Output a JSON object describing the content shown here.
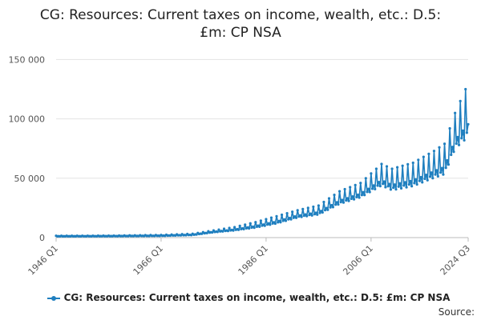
{
  "chart_data": {
    "type": "line",
    "title_line1": "CG: Resources: Current taxes on income, wealth, etc.: D.5:",
    "title_line2": "£m: CP NSA",
    "xlabel": "",
    "ylabel": "",
    "x_ticks": [
      "1946 Q1",
      "1966 Q1",
      "1986 Q1",
      "2006 Q1",
      "2024 Q3"
    ],
    "y_ticks": [
      "0",
      "50 000",
      "100 000",
      "150 000"
    ],
    "ylim": [
      0,
      155000
    ],
    "grid": true,
    "legend_position": "bottom",
    "color": "#1f7fbf",
    "frequency": "quarterly",
    "x_start": "1946 Q1",
    "x_end": "2024 Q3",
    "series": [
      {
        "name": "CG: Resources: Current taxes on income, wealth, etc.: D.5: £m: CP NSA",
        "anchors": [
          {
            "x": "1946 Q1",
            "trend": 1200,
            "amplitude": 300
          },
          {
            "x": "1956 Q1",
            "trend": 1300,
            "amplitude": 300
          },
          {
            "x": "1966 Q1",
            "trend": 1700,
            "amplitude": 500
          },
          {
            "x": "1972 Q1",
            "trend": 2500,
            "amplitude": 700
          },
          {
            "x": "1976 Q1",
            "trend": 5000,
            "amplitude": 1000
          },
          {
            "x": "1980 Q1",
            "trend": 7000,
            "amplitude": 1800
          },
          {
            "x": "1984 Q1",
            "trend": 10000,
            "amplitude": 3000
          },
          {
            "x": "1988 Q1",
            "trend": 14000,
            "amplitude": 4000
          },
          {
            "x": "1992 Q1",
            "trend": 19000,
            "amplitude": 4000
          },
          {
            "x": "1996 Q1",
            "trend": 22000,
            "amplitude": 5000
          },
          {
            "x": "2000 Q1",
            "trend": 32000,
            "amplitude": 7000
          },
          {
            "x": "2004 Q1",
            "trend": 38000,
            "amplitude": 8000
          },
          {
            "x": "2008 Q1",
            "trend": 50000,
            "amplitude": 12000
          },
          {
            "x": "2010 Q1",
            "trend": 46000,
            "amplitude": 12000
          },
          {
            "x": "2014 Q1",
            "trend": 50000,
            "amplitude": 13000
          },
          {
            "x": "2018 Q1",
            "trend": 58000,
            "amplitude": 15000
          },
          {
            "x": "2020 Q1",
            "trend": 62000,
            "amplitude": 17000
          },
          {
            "x": "2022 Q1",
            "trend": 85000,
            "amplitude": 20000
          },
          {
            "x": "2024 Q3",
            "trend": 100000,
            "amplitude": 30000
          }
        ]
      }
    ]
  },
  "legend": {
    "label": "CG: Resources: Current taxes on income, wealth, etc.: D.5: £m: CP NSA"
  },
  "footer": {
    "source_label": "Source:"
  }
}
